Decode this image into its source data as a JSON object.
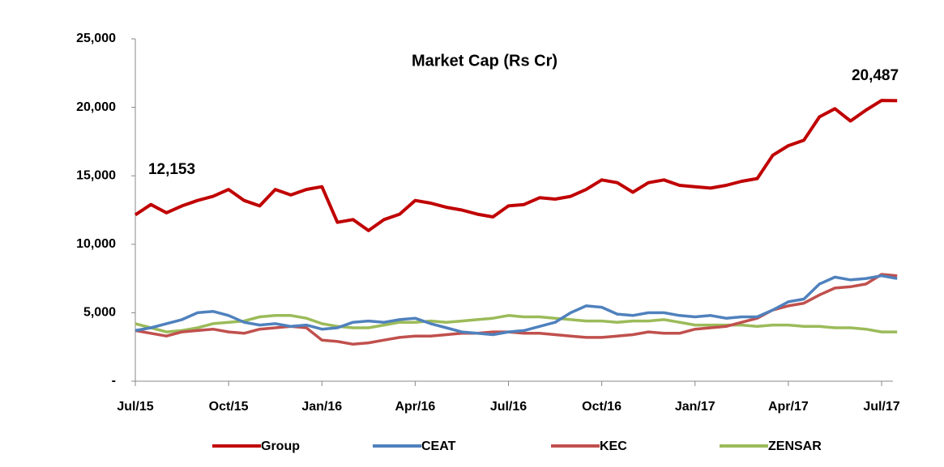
{
  "chart_data": {
    "type": "line",
    "title": "Market Cap (Rs Cr)",
    "categories": [
      "Jul/15",
      null,
      null,
      null,
      null,
      null,
      "Oct/15",
      null,
      null,
      null,
      null,
      null,
      "Jan/16",
      null,
      null,
      null,
      null,
      null,
      "Apr/16",
      null,
      null,
      null,
      null,
      null,
      "Jul/16",
      null,
      null,
      null,
      null,
      null,
      "Oct/16",
      null,
      null,
      null,
      null,
      null,
      "Jan/17",
      null,
      null,
      null,
      null,
      null,
      "Apr/17",
      null,
      null,
      null,
      null,
      null,
      "Jul/17",
      null
    ],
    "series": [
      {
        "name": "Group",
        "color": "#c00000",
        "values": [
          12153,
          12900,
          12300,
          12800,
          13200,
          13500,
          14000,
          13200,
          12800,
          14000,
          13600,
          14000,
          14200,
          11600,
          11800,
          11000,
          11800,
          12200,
          13200,
          13000,
          12700,
          12500,
          12200,
          12000,
          12800,
          12900,
          13400,
          13300,
          13500,
          14000,
          14700,
          14500,
          13800,
          14500,
          14700,
          14300,
          14200,
          14100,
          14300,
          14600,
          14800,
          16500,
          17200,
          17600,
          19300,
          19900,
          19000,
          19800,
          20500,
          20487
        ]
      },
      {
        "name": "CEAT",
        "color": "#4f81bd",
        "values": [
          3700,
          3900,
          4200,
          4500,
          5000,
          5100,
          4800,
          4300,
          4100,
          4200,
          4000,
          4100,
          3800,
          3900,
          4300,
          4400,
          4300,
          4500,
          4600,
          4200,
          3900,
          3600,
          3500,
          3400,
          3600,
          3700,
          4000,
          4300,
          5000,
          5500,
          5400,
          4900,
          4800,
          5000,
          5000,
          4800,
          4700,
          4800,
          4600,
          4700,
          4700,
          5200,
          5800,
          6000,
          7100,
          7600,
          7400,
          7500,
          7700,
          7500
        ]
      },
      {
        "name": "KEC",
        "color": "#c0504d",
        "values": [
          3700,
          3500,
          3300,
          3600,
          3700,
          3800,
          3600,
          3500,
          3800,
          3900,
          4000,
          3900,
          3000,
          2900,
          2700,
          2800,
          3000,
          3200,
          3300,
          3300,
          3400,
          3500,
          3500,
          3600,
          3600,
          3500,
          3500,
          3400,
          3300,
          3200,
          3200,
          3300,
          3400,
          3600,
          3500,
          3500,
          3800,
          3900,
          4000,
          4300,
          4600,
          5200,
          5500,
          5700,
          6300,
          6800,
          6900,
          7100,
          7800,
          7700
        ]
      },
      {
        "name": "ZENSAR",
        "color": "#9bbb59",
        "values": [
          4200,
          3900,
          3600,
          3700,
          3900,
          4200,
          4300,
          4400,
          4700,
          4800,
          4800,
          4600,
          4200,
          4000,
          3900,
          3900,
          4100,
          4300,
          4300,
          4400,
          4300,
          4400,
          4500,
          4600,
          4800,
          4700,
          4700,
          4600,
          4500,
          4400,
          4400,
          4300,
          4400,
          4400,
          4500,
          4300,
          4100,
          4100,
          4100,
          4100,
          4000,
          4100,
          4100,
          4000,
          4000,
          3900,
          3900,
          3800,
          3600,
          3600
        ]
      }
    ],
    "annotations": [
      "12,153",
      "20,487"
    ],
    "ylim": [
      0,
      25000
    ],
    "yticks": [
      {
        "value": 0,
        "label": "-"
      },
      {
        "value": 5000,
        "label": "5,000"
      },
      {
        "value": 10000,
        "label": "10,000"
      },
      {
        "value": 15000,
        "label": "15,000"
      },
      {
        "value": 20000,
        "label": "20,000"
      },
      {
        "value": 25000,
        "label": "25,000"
      }
    ],
    "grid": false,
    "legend": "bottom"
  }
}
